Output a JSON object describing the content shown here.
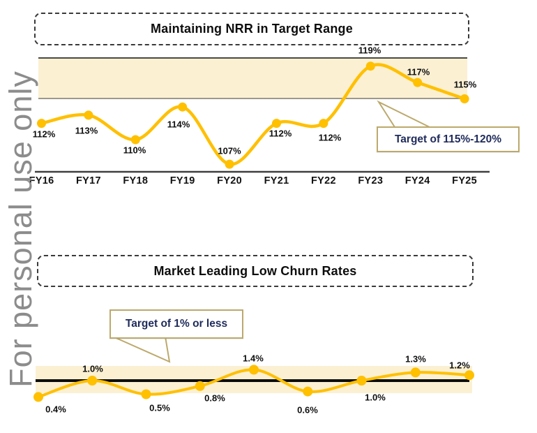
{
  "watermark": {
    "text": "For personal use only"
  },
  "chart_data": [
    {
      "type": "line",
      "title": "Maintaining NRR in Target Range",
      "categories": [
        "FY16",
        "FY17",
        "FY18",
        "FY19",
        "FY20",
        "FY21",
        "FY22",
        "FY23",
        "FY24",
        "FY25"
      ],
      "values": [
        112,
        113,
        110,
        114,
        107,
        112,
        112,
        119,
        117,
        115
      ],
      "labels": [
        "112%",
        "113%",
        "110%",
        "114%",
        "107%",
        "112%",
        "112%",
        "119%",
        "117%",
        "115%"
      ],
      "ylabel": "",
      "xlabel": "",
      "ylim_hint": [
        106,
        121
      ],
      "target_band": {
        "low": 115,
        "high": 120,
        "fill": "#FBF0D2"
      },
      "annotation": "Target of 115%-120%",
      "series_color": "#FFC000",
      "legend": "none",
      "grid": false
    },
    {
      "type": "line",
      "title": "Market Leading Low Churn Rates",
      "values": [
        0.4,
        1.0,
        0.5,
        0.8,
        1.4,
        0.6,
        1.0,
        1.3,
        1.2
      ],
      "labels": [
        "0.4%",
        "1.0%",
        "0.5%",
        "0.8%",
        "1.4%",
        "0.6%",
        "1.0%",
        "1.3%",
        "1.2%"
      ],
      "ylabel": "",
      "xlabel": "",
      "target_line": 1.0,
      "target_band": {
        "low": 0.5,
        "high": 1.5,
        "fill": "#FBF0D2"
      },
      "annotation": "Target of 1% or less",
      "series_color": "#FFC000",
      "target_line_color": "#0d0d0d",
      "legend": "none",
      "grid": false
    }
  ],
  "colors": {
    "gold": "#FFC000",
    "band_fill": "#FBF0D2",
    "callout_border": "#BCA96C",
    "callout_text_navy": "#1F2B5B",
    "watermark_gray": "#8C8C8C",
    "band_top_line": "#4A4A45",
    "band_bottom_line": "#9B988C",
    "axis_line": "#3F3F3F"
  }
}
